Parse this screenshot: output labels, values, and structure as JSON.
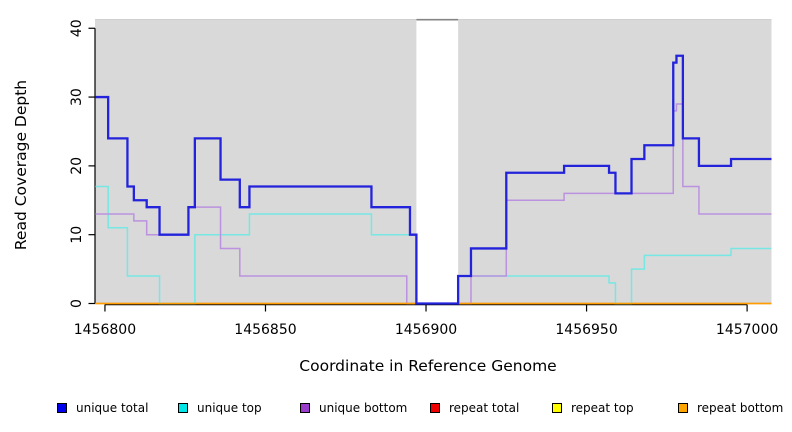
{
  "figure": {
    "background": "#ffffff"
  },
  "chart_data": {
    "type": "line",
    "line_style": "step",
    "title": "",
    "xlabel": "Coordinate in Reference Genome",
    "ylabel": "Read Coverage Depth",
    "xlim": [
      1456796.9,
      1457007.6
    ],
    "ylim": [
      0,
      41.2
    ],
    "grid": false,
    "plot_background_color": "#d9d9d9",
    "axis_color": "#000000",
    "coverage_gap": {
      "x_from": 1456897,
      "x_to": 1456910,
      "color": "#ffffff",
      "top_border_color": "#858585"
    },
    "x_ticks": {
      "values": [
        1456800,
        1456850,
        1456900,
        1456950,
        1457000
      ],
      "labels": [
        "1456800",
        "1456850",
        "1456900",
        "1456950",
        "1457000"
      ]
    },
    "y_ticks": {
      "values": [
        0,
        10,
        20,
        30,
        40
      ],
      "labels": [
        "0",
        "10",
        "20",
        "30",
        "40"
      ]
    },
    "series": [
      {
        "name": "unique total",
        "color": "#2323dc",
        "line_width": 2.3,
        "draw_order": 6,
        "points": [
          [
            1456797,
            30
          ],
          [
            1456801,
            24
          ],
          [
            1456807,
            17
          ],
          [
            1456809,
            15
          ],
          [
            1456813,
            14
          ],
          [
            1456817,
            10
          ],
          [
            1456826,
            14
          ],
          [
            1456828,
            24
          ],
          [
            1456836,
            18
          ],
          [
            1456842,
            14
          ],
          [
            1456845,
            17
          ],
          [
            1456883,
            14
          ],
          [
            1456895,
            10
          ],
          [
            1456897,
            0
          ],
          [
            1456910,
            4
          ],
          [
            1456914,
            8
          ],
          [
            1456925,
            19
          ],
          [
            1456943,
            20
          ],
          [
            1456957,
            19
          ],
          [
            1456959,
            16
          ],
          [
            1456964,
            21
          ],
          [
            1456968,
            23
          ],
          [
            1456977,
            35
          ],
          [
            1456978,
            36
          ],
          [
            1456980,
            24
          ],
          [
            1456985,
            20
          ],
          [
            1456995,
            21
          ]
        ]
      },
      {
        "name": "unique top",
        "color": "#76e7e3",
        "line_width": 1.5,
        "draw_order": 3,
        "points": [
          [
            1456797,
            17
          ],
          [
            1456801,
            11
          ],
          [
            1456807,
            4
          ],
          [
            1456817,
            0
          ],
          [
            1456828,
            10
          ],
          [
            1456845,
            13
          ],
          [
            1456883,
            10
          ],
          [
            1456897,
            0
          ],
          [
            1456910,
            4
          ],
          [
            1456957,
            3
          ],
          [
            1456959,
            0
          ],
          [
            1456964,
            5
          ],
          [
            1456968,
            7
          ],
          [
            1456995,
            8
          ]
        ]
      },
      {
        "name": "unique bottom",
        "color": "#bb92e0",
        "line_width": 1.5,
        "draw_order": 4,
        "points": [
          [
            1456797,
            13
          ],
          [
            1456809,
            12
          ],
          [
            1456813,
            10
          ],
          [
            1456826,
            14
          ],
          [
            1456836,
            8
          ],
          [
            1456842,
            4
          ],
          [
            1456894,
            0
          ],
          [
            1456914,
            4
          ],
          [
            1456925,
            15
          ],
          [
            1456943,
            16
          ],
          [
            1456977,
            28
          ],
          [
            1456978,
            29
          ],
          [
            1456980,
            17
          ],
          [
            1456985,
            13
          ]
        ]
      },
      {
        "name": "repeat total",
        "color": "#dd2222",
        "line_width": 1.3,
        "draw_order": 1,
        "points": [
          [
            1456797,
            0
          ]
        ]
      },
      {
        "name": "repeat top",
        "color": "#f0e640",
        "line_width": 1.3,
        "draw_order": 2,
        "points": [
          [
            1456797,
            0
          ]
        ]
      },
      {
        "name": "repeat bottom",
        "color": "#ff9d00",
        "line_width": 1.6,
        "draw_order": 5,
        "points": [
          [
            1456797,
            0
          ]
        ]
      }
    ],
    "legend": {
      "position": "bottom",
      "entries": [
        {
          "label": "unique total",
          "color": "#0000ee"
        },
        {
          "label": "unique top",
          "color": "#00e6e6"
        },
        {
          "label": "unique bottom",
          "color": "#9a3bcc"
        },
        {
          "label": "repeat total",
          "color": "#ee0000"
        },
        {
          "label": "repeat top",
          "color": "#ffff00"
        },
        {
          "label": "repeat bottom",
          "color": "#ffa500"
        }
      ]
    }
  }
}
